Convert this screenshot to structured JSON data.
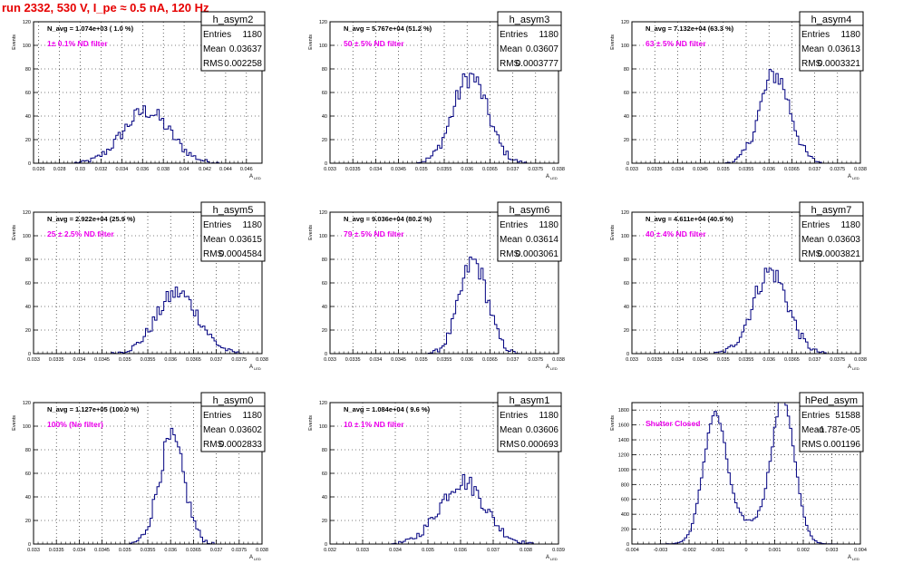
{
  "page_title": "run 2332,   530 V, I_pe ≈ 0.5 nA, 120 Hz",
  "colors": {
    "title": "#e60000",
    "annotation": "#ee00ee",
    "histogram": "#000080",
    "frame": "#000000",
    "grid": "#000000"
  },
  "y_axis_label": "Events",
  "x_axis_label": "A",
  "x_axis_label_sub": "LED",
  "stats_labels": {
    "entries": "Entries",
    "mean": "Mean",
    "rms": "RMS"
  },
  "chart_data": [
    {
      "type": "bar",
      "name": "h_asym2",
      "navg": "N_avg = 1.074e+03 ( 1.0 %)",
      "filter": "1± 0.1% ND filter",
      "entries": "1180",
      "mean": "0.03637",
      "rms": "0.002258",
      "mu": 0.03637,
      "sigma": 0.002258,
      "xlim": [
        0.0255,
        0.0475
      ],
      "ylim": [
        0,
        120
      ],
      "xticks": [
        0.026,
        0.028,
        0.03,
        0.032,
        0.034,
        0.036,
        0.038,
        0.04,
        0.042,
        0.044,
        0.046
      ],
      "xtick_labels": [
        "0.026",
        "0.028",
        "0.03",
        "0.032",
        "0.034",
        "0.036",
        "0.038",
        "0.04",
        "0.042",
        "0.044",
        "0.046"
      ],
      "yticks": [
        0,
        20,
        40,
        60,
        80,
        100,
        120
      ],
      "peak_approx": 48,
      "grid": true
    },
    {
      "type": "bar",
      "name": "h_asym3",
      "navg": "N_avg = 5.767e+04 (51.2 %)",
      "filter": "50 ± 5% ND filter",
      "entries": "1180",
      "mean": "0.03607",
      "rms": "0.0003777",
      "mu": 0.03607,
      "sigma": 0.0003777,
      "xlim": [
        0.033,
        0.038
      ],
      "ylim": [
        0,
        120
      ],
      "xticks": [
        0.033,
        0.0335,
        0.034,
        0.0345,
        0.035,
        0.0355,
        0.036,
        0.0365,
        0.037,
        0.0375,
        0.038
      ],
      "xtick_labels": [
        "0.033",
        "0.0335",
        "0.034",
        "0.0345",
        "0.035",
        "0.0355",
        "0.036",
        "0.0365",
        "0.037",
        "0.0375",
        "0.038"
      ],
      "yticks": [
        0,
        20,
        40,
        60,
        80,
        100,
        120
      ],
      "peak_approx": 80,
      "grid": true
    },
    {
      "type": "bar",
      "name": "h_asym4",
      "navg": "N_avg = 7.132e+04 (63.3 %)",
      "filter": "63 ± 5% ND filter",
      "entries": "1180",
      "mean": "0.03613",
      "rms": "0.0003321",
      "mu": 0.03613,
      "sigma": 0.0003321,
      "xlim": [
        0.033,
        0.038
      ],
      "ylim": [
        0,
        120
      ],
      "xticks": [
        0.033,
        0.0335,
        0.034,
        0.0345,
        0.035,
        0.0355,
        0.036,
        0.0365,
        0.037,
        0.0375,
        0.038
      ],
      "xtick_labels": [
        "0.033",
        "0.0335",
        "0.034",
        "0.0345",
        "0.035",
        "0.0355",
        "0.036",
        "0.0365",
        "0.037",
        "0.0375",
        "0.038"
      ],
      "yticks": [
        0,
        20,
        40,
        60,
        80,
        100,
        120
      ],
      "peak_approx": 82,
      "grid": true
    },
    {
      "type": "bar",
      "name": "h_asym5",
      "navg": "N_avg = 2.922e+04 (25.9 %)",
      "filter": "25 ± 2.5% ND filter",
      "entries": "1180",
      "mean": "0.03615",
      "rms": "0.0004584",
      "mu": 0.03615,
      "sigma": 0.0004584,
      "xlim": [
        0.033,
        0.038
      ],
      "ylim": [
        0,
        120
      ],
      "xticks": [
        0.033,
        0.0335,
        0.034,
        0.0345,
        0.035,
        0.0355,
        0.036,
        0.0365,
        0.037,
        0.0375,
        0.038
      ],
      "xtick_labels": [
        "0.033",
        "0.0335",
        "0.034",
        "0.0345",
        "0.035",
        "0.0355",
        "0.036",
        "0.0365",
        "0.037",
        "0.0375",
        "0.038"
      ],
      "yticks": [
        0,
        20,
        40,
        60,
        80,
        100,
        120
      ],
      "peak_approx": 56,
      "grid": true
    },
    {
      "type": "bar",
      "name": "h_asym6",
      "navg": "N_avg = 9.036e+04 (80.2 %)",
      "filter": "79 ± 5% ND filter",
      "entries": "1180",
      "mean": "0.03614",
      "rms": "0.0003061",
      "mu": 0.03614,
      "sigma": 0.0003061,
      "xlim": [
        0.033,
        0.038
      ],
      "ylim": [
        0,
        120
      ],
      "xticks": [
        0.033,
        0.0335,
        0.034,
        0.0345,
        0.035,
        0.0355,
        0.036,
        0.0365,
        0.037,
        0.0375,
        0.038
      ],
      "xtick_labels": [
        "0.033",
        "0.0335",
        "0.034",
        "0.0345",
        "0.035",
        "0.0355",
        "0.036",
        "0.0365",
        "0.037",
        "0.0375",
        "0.038"
      ],
      "yticks": [
        0,
        20,
        40,
        60,
        80,
        100,
        120
      ],
      "peak_approx": 85,
      "grid": true
    },
    {
      "type": "bar",
      "name": "h_asym7",
      "navg": "N_avg = 4.611e+04 (40.9 %)",
      "filter": "40 ± 4% ND filter",
      "entries": "1180",
      "mean": "0.03603",
      "rms": "0.0003821",
      "mu": 0.03603,
      "sigma": 0.0003821,
      "xlim": [
        0.033,
        0.038
      ],
      "ylim": [
        0,
        120
      ],
      "xticks": [
        0.033,
        0.0335,
        0.034,
        0.0345,
        0.035,
        0.0355,
        0.036,
        0.0365,
        0.037,
        0.0375,
        0.038
      ],
      "xtick_labels": [
        "0.033",
        "0.0335",
        "0.034",
        "0.0345",
        "0.035",
        "0.0355",
        "0.036",
        "0.0365",
        "0.037",
        "0.0375",
        "0.038"
      ],
      "yticks": [
        0,
        20,
        40,
        60,
        80,
        100,
        120
      ],
      "peak_approx": 76,
      "grid": true
    },
    {
      "type": "bar",
      "name": "h_asym0",
      "navg": "N_avg = 1.127e+05 (100.0 %)",
      "filter": "100% (No filter)",
      "entries": "1180",
      "mean": "0.03602",
      "rms": "0.0002833",
      "mu": 0.03602,
      "sigma": 0.0002833,
      "xlim": [
        0.033,
        0.038
      ],
      "ylim": [
        0,
        120
      ],
      "xticks": [
        0.033,
        0.0335,
        0.034,
        0.0345,
        0.035,
        0.0355,
        0.036,
        0.0365,
        0.037,
        0.0375,
        0.038
      ],
      "xtick_labels": [
        "0.033",
        "0.0335",
        "0.034",
        "0.0345",
        "0.035",
        "0.0355",
        "0.036",
        "0.0365",
        "0.037",
        "0.0375",
        "0.038"
      ],
      "yticks": [
        0,
        20,
        40,
        60,
        80,
        100,
        120
      ],
      "peak_approx": 96,
      "grid": true
    },
    {
      "type": "bar",
      "name": "h_asym1",
      "navg": "N_avg = 1.084e+04 ( 9.6 %)",
      "filter": "10 ± 1% ND filter",
      "entries": "1180",
      "mean": "0.03606",
      "rms": "0.000693",
      "mu": 0.03606,
      "sigma": 0.000693,
      "xlim": [
        0.032,
        0.039
      ],
      "ylim": [
        0,
        120
      ],
      "xticks": [
        0.032,
        0.033,
        0.034,
        0.035,
        0.036,
        0.037,
        0.038,
        0.039
      ],
      "xtick_labels": [
        "0.032",
        "0.033",
        "0.034",
        "0.035",
        "0.036",
        "0.037",
        "0.038",
        "0.039"
      ],
      "yticks": [
        0,
        20,
        40,
        60,
        80,
        100,
        120
      ],
      "peak_approx": 58,
      "grid": true
    },
    {
      "type": "bar",
      "name": "hPed_asym",
      "navg": "",
      "filter": "Shutter Closed",
      "entries": "51588",
      "mean": "-1.787e-05",
      "rms": "0.001196",
      "bimodal": true,
      "peaks": [
        -0.0011,
        0.0013
      ],
      "peak_heights": [
        1620,
        1850
      ],
      "peak_sigma": 0.0004,
      "xlim": [
        -0.004,
        0.004
      ],
      "ylim": [
        0,
        1900
      ],
      "xticks": [
        -0.004,
        -0.003,
        -0.002,
        -0.001,
        0,
        0.001,
        0.002,
        0.003,
        0.004
      ],
      "xtick_labels": [
        "-0.004",
        "-0.003",
        "-0.002",
        "-0.001",
        "0",
        "0.001",
        "0.002",
        "0.003",
        "0.004"
      ],
      "yticks": [
        0,
        200,
        400,
        600,
        800,
        1000,
        1200,
        1400,
        1600,
        1800
      ],
      "grid": true
    }
  ]
}
